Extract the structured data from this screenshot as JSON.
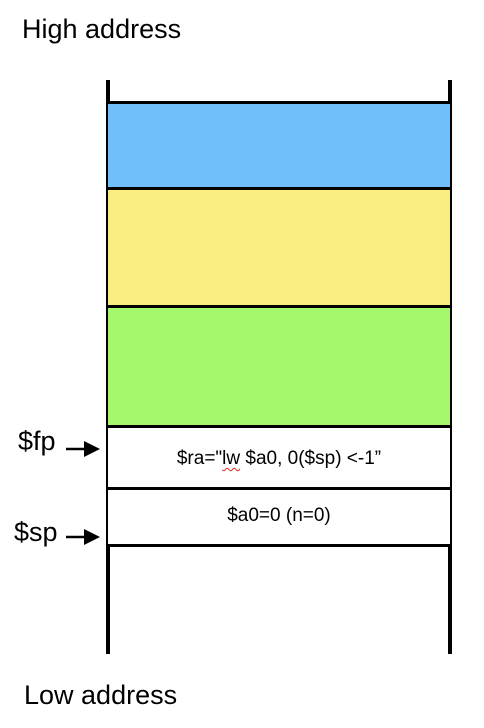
{
  "labels": {
    "high_address": "High address",
    "low_address": "Low address"
  },
  "stack": {
    "blocks": [
      {
        "id": "blue",
        "color": "#71bffa"
      },
      {
        "id": "yellow",
        "color": "#f9ee7f"
      },
      {
        "id": "green",
        "color": "#a5f86c"
      }
    ],
    "ra_cell": {
      "prefix": "$ra=\"",
      "code_word": "lw",
      "suffix": " $a0, 0($sp) <-1”"
    },
    "a0_cell": {
      "text": "$a0=0 (n=0)"
    }
  },
  "pointers": {
    "fp": "$fp",
    "sp": "$sp"
  }
}
